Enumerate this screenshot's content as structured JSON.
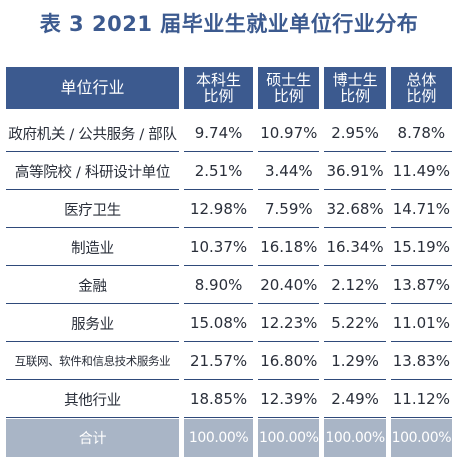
{
  "title": "表 3 2021 届毕业生就业单位行业分布",
  "colors": {
    "header_bg": "#3c5a8f",
    "divider": "#2f4a7a",
    "total_bg": "#a9b5c6",
    "text": "#2a2f3a"
  },
  "header": {
    "industry": "单位行业",
    "columns": [
      [
        "本科生",
        "比例"
      ],
      [
        "硕士生",
        "比例"
      ],
      [
        "博士生",
        "比例"
      ],
      [
        "总体",
        "比例"
      ]
    ]
  },
  "rows": [
    {
      "industry": "政府机关 / 公共服务 / 部队",
      "values": [
        "9.74%",
        "10.97%",
        "2.95%",
        "8.78%"
      ]
    },
    {
      "industry": "高等院校 / 科研设计单位",
      "values": [
        "2.51%",
        "3.44%",
        "36.91%",
        "11.49%"
      ]
    },
    {
      "industry": "医疗卫生",
      "values": [
        "12.98%",
        "7.59%",
        "32.68%",
        "14.71%"
      ]
    },
    {
      "industry": "制造业",
      "values": [
        "10.37%",
        "16.18%",
        "16.34%",
        "15.19%"
      ]
    },
    {
      "industry": "金融",
      "values": [
        "8.90%",
        "20.40%",
        "2.12%",
        "13.87%"
      ]
    },
    {
      "industry": "服务业",
      "values": [
        "15.08%",
        "12.23%",
        "5.22%",
        "11.01%"
      ]
    },
    {
      "industry": "互联网、软件和信息技术服务业",
      "values": [
        "21.57%",
        "16.80%",
        "1.29%",
        "13.83%"
      ]
    },
    {
      "industry": "其他行业",
      "values": [
        "18.85%",
        "12.39%",
        "2.49%",
        "11.12%"
      ]
    }
  ],
  "total": {
    "label": "合计",
    "values": [
      "100.00%",
      "100.00%",
      "100.00%",
      "100.00%"
    ]
  }
}
